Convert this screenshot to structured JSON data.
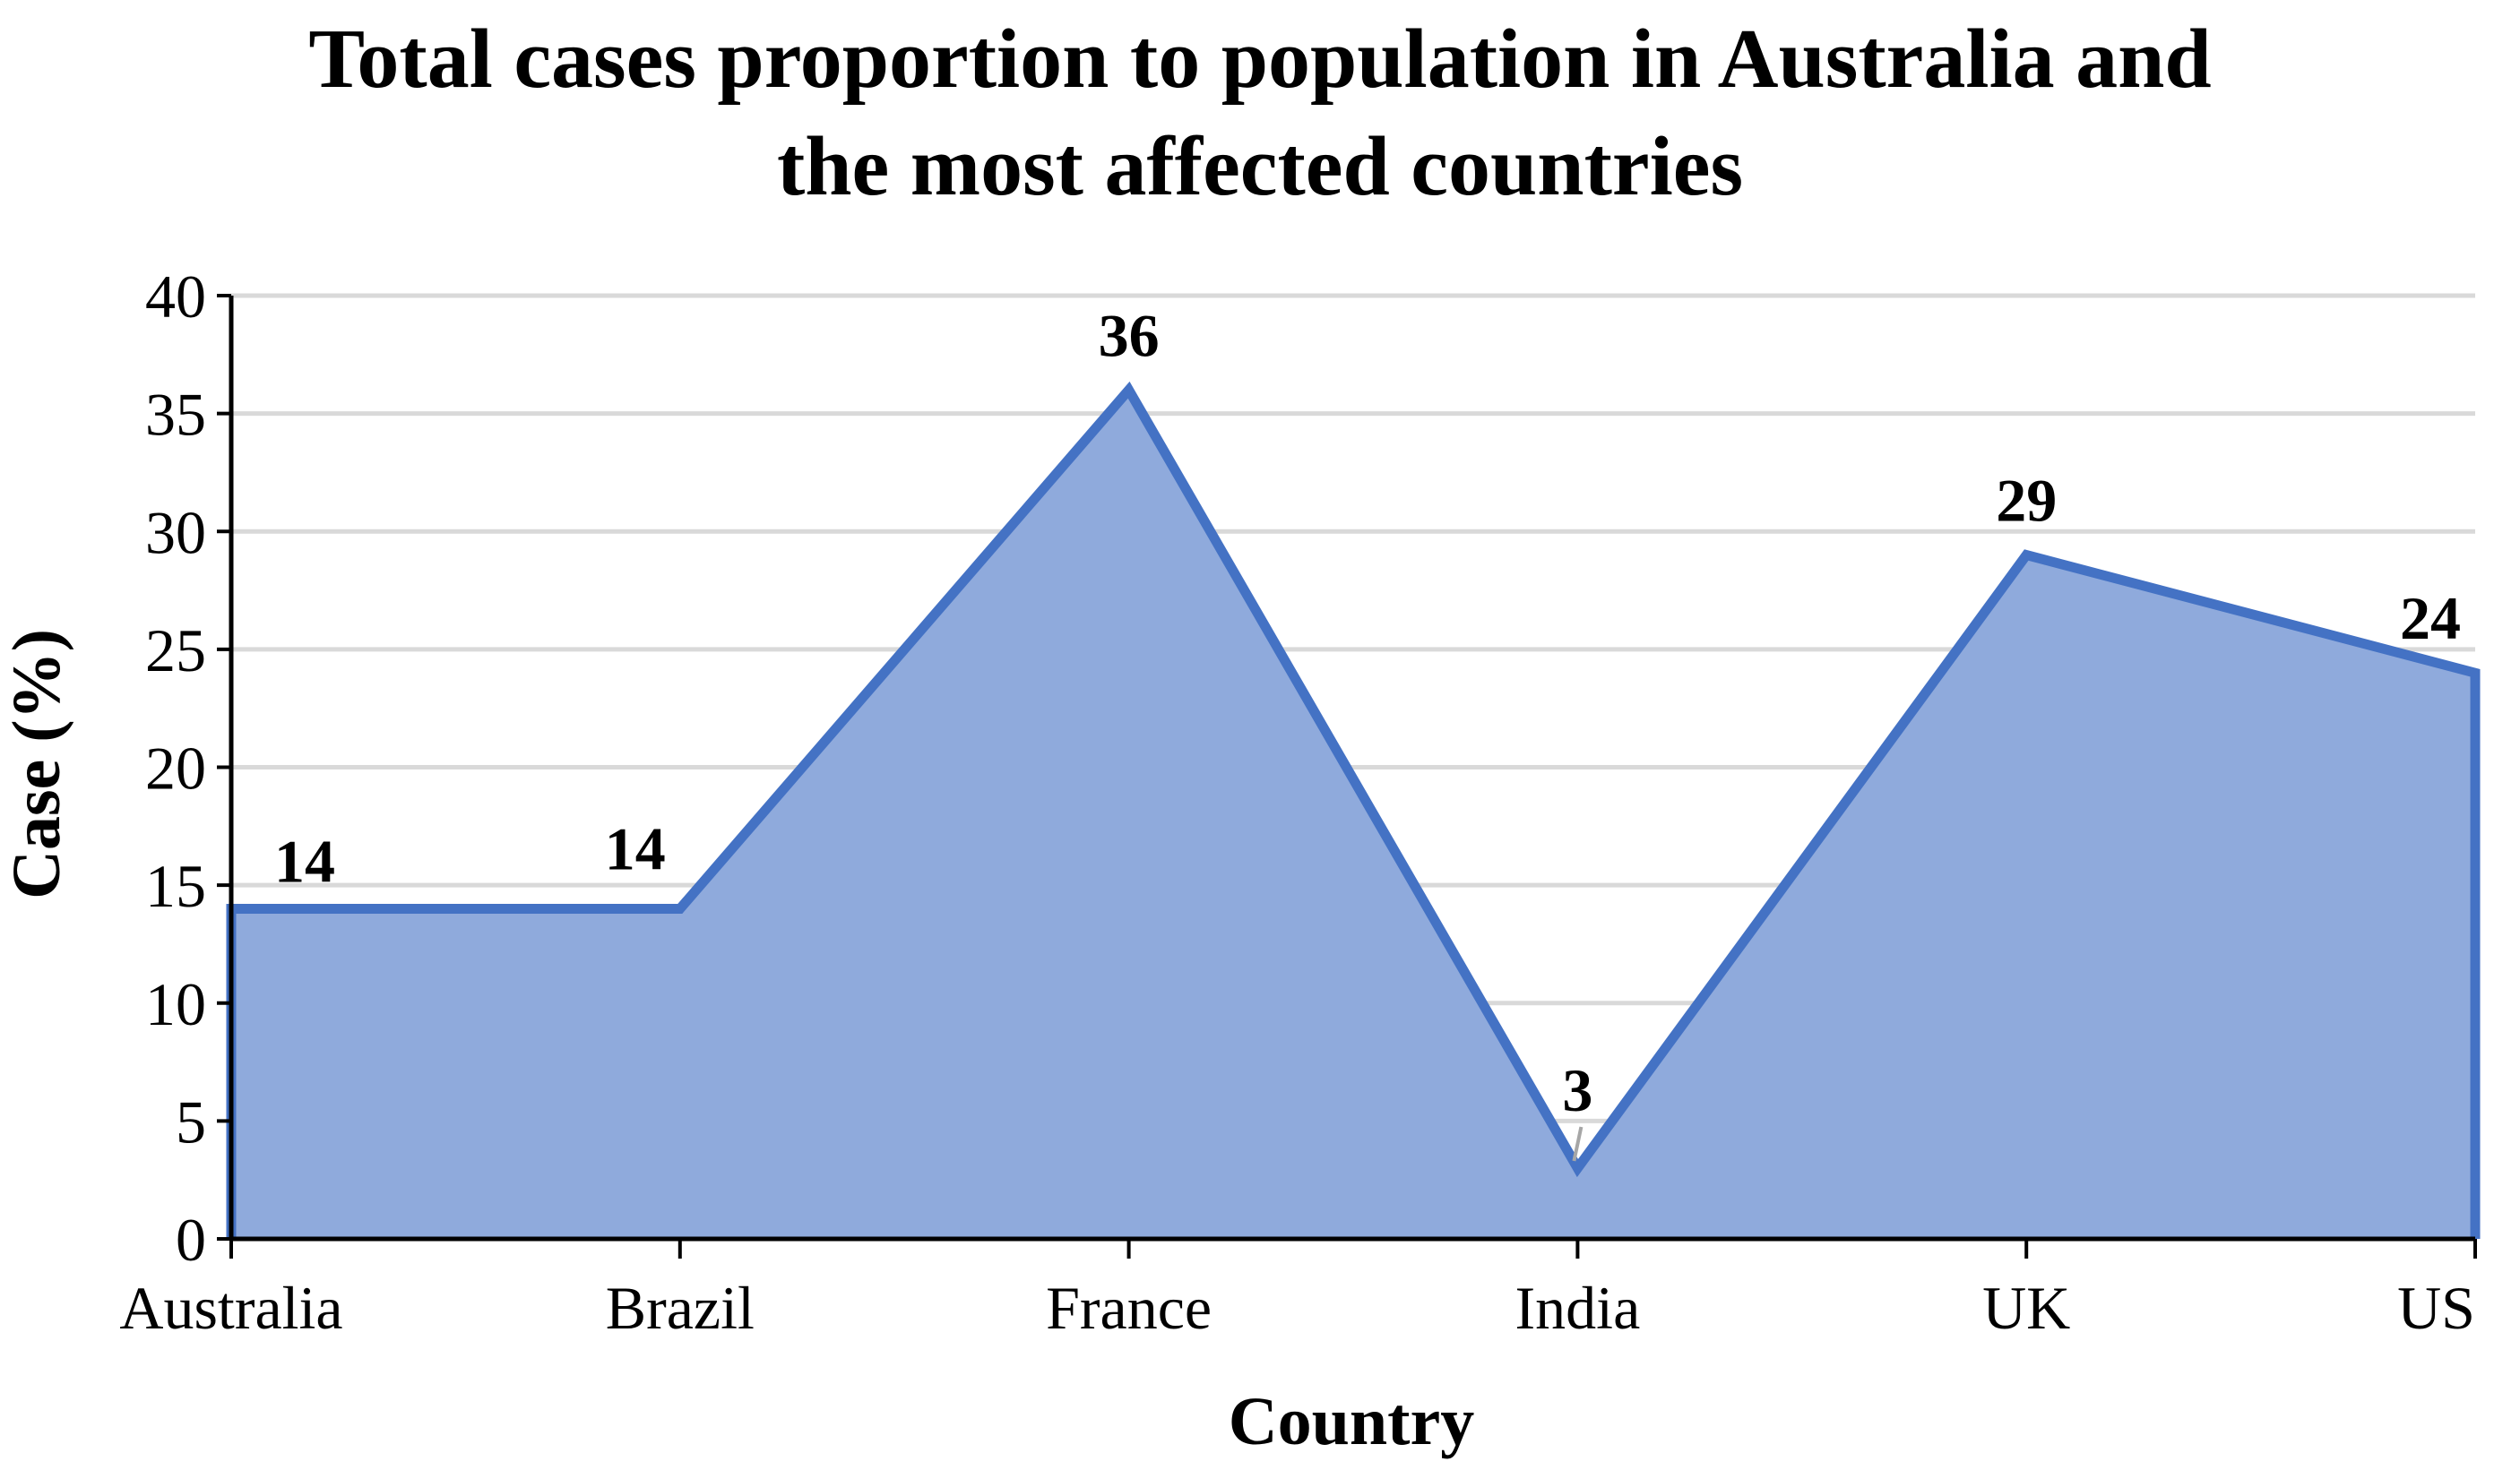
{
  "chart_data": {
    "type": "area",
    "title": [
      "Total cases proportion to population in Australia and",
      "the most affected countries"
    ],
    "xlabel": "Country",
    "ylabel": "Case (%)",
    "categories": [
      "Australia",
      "Brazil",
      "France",
      "India",
      "UK",
      "US"
    ],
    "series": [
      {
        "values": [
          14,
          14,
          36,
          3,
          29,
          24
        ],
        "color": "#4472C4",
        "fill": "#8FAADC"
      }
    ],
    "data_labels": [
      "14",
      "14",
      "36",
      "3",
      "29",
      "24"
    ],
    "ylim": [
      0,
      40
    ],
    "yticks": [
      0,
      5,
      10,
      15,
      20,
      25,
      30,
      35,
      40
    ],
    "grid": "horizontal",
    "legend": "none"
  }
}
